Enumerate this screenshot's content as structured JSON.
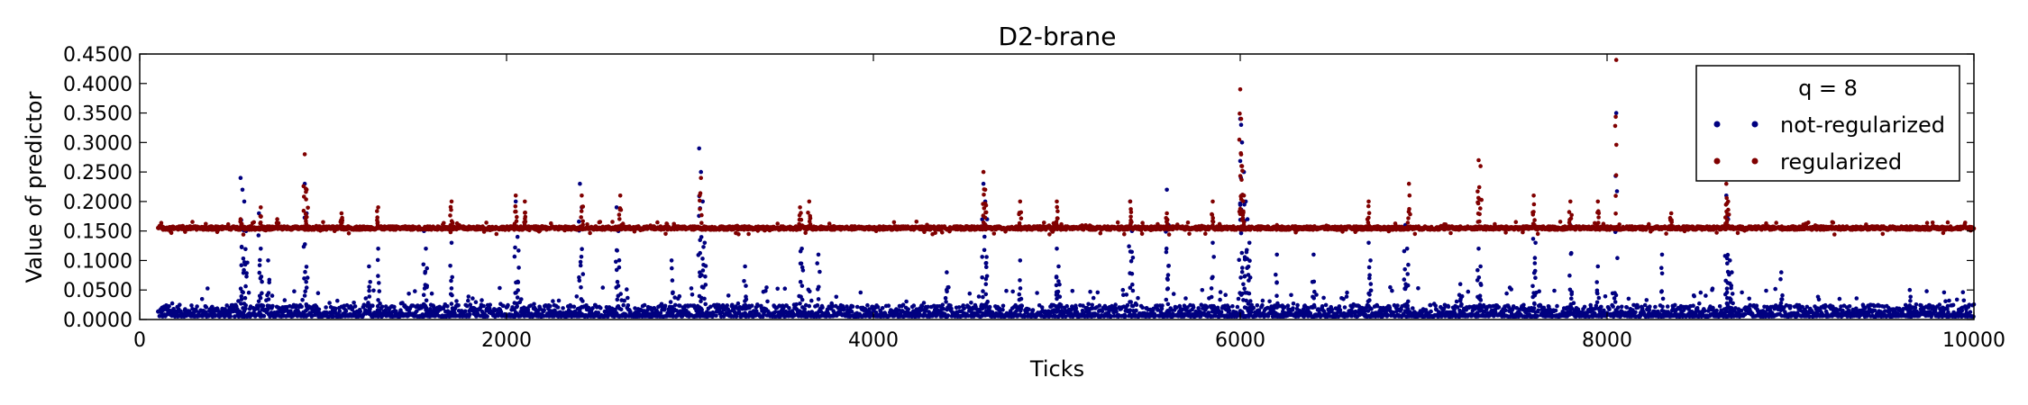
{
  "chart_data": {
    "type": "scatter",
    "title": "D2-brane",
    "xlabel": "Ticks",
    "ylabel": "Value of predictor",
    "xlim": [
      0,
      10000
    ],
    "ylim": [
      0,
      0.45
    ],
    "x_ticks": [
      0,
      2000,
      4000,
      6000,
      8000,
      10000
    ],
    "y_ticks": [
      0.0,
      0.05,
      0.1,
      0.15,
      0.2,
      0.25,
      0.3,
      0.35,
      0.4,
      0.45
    ],
    "x_tick_labels": [
      "0",
      "2000",
      "4000",
      "6000",
      "8000",
      "10000"
    ],
    "y_tick_labels": [
      "0.0000",
      "0.0500",
      "0.1000",
      "0.1500",
      "0.2000",
      "0.2500",
      "0.3000",
      "0.3500",
      "0.4000",
      "0.4500"
    ],
    "grid": false,
    "legend": {
      "title": "q = 8",
      "placement": "top-right"
    },
    "x_range": [
      100,
      10000
    ],
    "series": [
      {
        "name": "not-regularized",
        "color": "#000080",
        "baseline": 0.01,
        "baseline_noise": 0.02,
        "points": [
          [
            550,
            0.24
          ],
          [
            560,
            0.22
          ],
          [
            570,
            0.2
          ],
          [
            580,
            0.15
          ],
          [
            650,
            0.18
          ],
          [
            660,
            0.12
          ],
          [
            700,
            0.1
          ],
          [
            900,
            0.23
          ],
          [
            910,
            0.18
          ],
          [
            1250,
            0.09
          ],
          [
            1300,
            0.12
          ],
          [
            1550,
            0.15
          ],
          [
            1560,
            0.12
          ],
          [
            1700,
            0.13
          ],
          [
            2050,
            0.2
          ],
          [
            2060,
            0.14
          ],
          [
            2400,
            0.23
          ],
          [
            2410,
            0.19
          ],
          [
            2600,
            0.19
          ],
          [
            2610,
            0.15
          ],
          [
            2900,
            0.1
          ],
          [
            3050,
            0.29
          ],
          [
            3060,
            0.25
          ],
          [
            3070,
            0.2
          ],
          [
            3080,
            0.13
          ],
          [
            3300,
            0.09
          ],
          [
            3600,
            0.16
          ],
          [
            3610,
            0.12
          ],
          [
            3700,
            0.11
          ],
          [
            4400,
            0.08
          ],
          [
            4600,
            0.23
          ],
          [
            4610,
            0.2
          ],
          [
            4620,
            0.17
          ],
          [
            4800,
            0.1
          ],
          [
            5000,
            0.12
          ],
          [
            5010,
            0.09
          ],
          [
            5400,
            0.2
          ],
          [
            5410,
            0.15
          ],
          [
            5600,
            0.22
          ],
          [
            5610,
            0.16
          ],
          [
            5850,
            0.13
          ],
          [
            6000,
            0.34
          ],
          [
            6005,
            0.33
          ],
          [
            6010,
            0.3
          ],
          [
            6020,
            0.25
          ],
          [
            6030,
            0.2
          ],
          [
            6040,
            0.17
          ],
          [
            6050,
            0.13
          ],
          [
            6200,
            0.11
          ],
          [
            6400,
            0.11
          ],
          [
            6700,
            0.13
          ],
          [
            6710,
            0.1
          ],
          [
            6900,
            0.16
          ],
          [
            6910,
            0.12
          ],
          [
            7200,
            0.06
          ],
          [
            7300,
            0.12
          ],
          [
            7310,
            0.09
          ],
          [
            7600,
            0.16
          ],
          [
            7610,
            0.13
          ],
          [
            7800,
            0.16
          ],
          [
            7950,
            0.09
          ],
          [
            8050,
            0.35
          ],
          [
            8300,
            0.11
          ],
          [
            8650,
            0.21
          ],
          [
            8660,
            0.17
          ],
          [
            8670,
            0.1
          ],
          [
            8680,
            0.08
          ],
          [
            8950,
            0.08
          ],
          [
            9650,
            0.05
          ]
        ]
      },
      {
        "name": "regularized",
        "color": "#800000",
        "baseline": 0.155,
        "baseline_noise": 0.01,
        "points": [
          [
            550,
            0.17
          ],
          [
            660,
            0.19
          ],
          [
            750,
            0.17
          ],
          [
            900,
            0.28
          ],
          [
            910,
            0.22
          ],
          [
            1100,
            0.18
          ],
          [
            1300,
            0.19
          ],
          [
            1700,
            0.2
          ],
          [
            2050,
            0.21
          ],
          [
            2100,
            0.2
          ],
          [
            2410,
            0.21
          ],
          [
            2620,
            0.21
          ],
          [
            3060,
            0.24
          ],
          [
            3600,
            0.19
          ],
          [
            3650,
            0.2
          ],
          [
            4600,
            0.25
          ],
          [
            4610,
            0.22
          ],
          [
            4800,
            0.2
          ],
          [
            5000,
            0.2
          ],
          [
            5400,
            0.2
          ],
          [
            5600,
            0.18
          ],
          [
            5850,
            0.2
          ],
          [
            6000,
            0.39
          ],
          [
            6005,
            0.34
          ],
          [
            6010,
            0.26
          ],
          [
            6020,
            0.21
          ],
          [
            6200,
            0.16
          ],
          [
            6700,
            0.2
          ],
          [
            6920,
            0.23
          ],
          [
            7300,
            0.27
          ],
          [
            7310,
            0.26
          ],
          [
            7600,
            0.21
          ],
          [
            7800,
            0.2
          ],
          [
            7950,
            0.2
          ],
          [
            8050,
            0.44
          ],
          [
            8350,
            0.18
          ],
          [
            8650,
            0.23
          ],
          [
            8660,
            0.2
          ]
        ]
      }
    ]
  }
}
